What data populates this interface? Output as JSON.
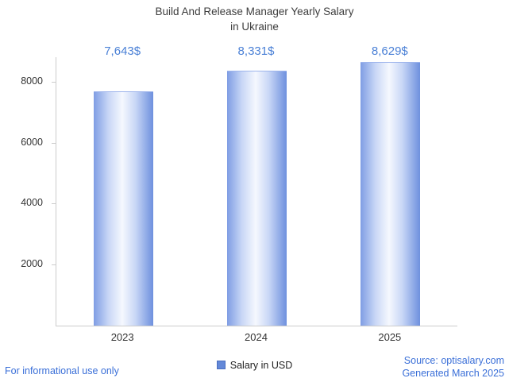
{
  "title": {
    "line1": "Build And Release Manager Yearly Salary",
    "line2": "in Ukraine"
  },
  "legend": {
    "label": "Salary in USD",
    "marker_color": "#6388d8"
  },
  "footer": {
    "left": "For informational use only",
    "source": "Source: optisalary.com",
    "generated": "Generated March 2025"
  },
  "colors": {
    "value_label": "#4a80d6",
    "bar_edge": "#7f9de4",
    "bar_center": "#f5f8fe",
    "axis": "#cccccc",
    "title_text": "#3d3d3d",
    "footer_link": "#3a6fd8"
  },
  "chart_data": {
    "type": "bar",
    "title": "Build And Release Manager Yearly Salary in Ukraine",
    "categories": [
      "2023",
      "2024",
      "2025"
    ],
    "values": [
      7643,
      8331,
      8629
    ],
    "value_labels": [
      "7,643$",
      "8,331$",
      "8,629$"
    ],
    "series_name": "Salary in USD",
    "xlabel": "",
    "ylabel": "",
    "ylim": [
      0,
      8800
    ],
    "yticks": [
      2000,
      4000,
      6000,
      8000
    ],
    "grid": false,
    "legend_position": "bottom"
  }
}
